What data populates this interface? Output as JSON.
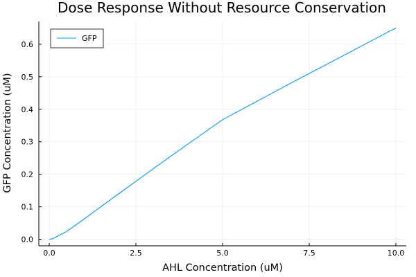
{
  "chart_data": {
    "type": "line",
    "title": "Dose Response Without Resource Conservation",
    "xlabel": "AHL Concentration (uM)",
    "ylabel": "GFP Concentration (uM)",
    "xlim": [
      -0.3,
      10.3
    ],
    "ylim": [
      -0.02,
      0.67
    ],
    "xticks": [
      0.0,
      2.5,
      5.0,
      7.5,
      10.0
    ],
    "xtick_labels": [
      "0.0",
      "2.5",
      "5.0",
      "7.5",
      "10.0"
    ],
    "yticks": [
      0.0,
      0.1,
      0.2,
      0.3,
      0.4,
      0.5,
      0.6
    ],
    "ytick_labels": [
      "0.0",
      "0.1",
      "0.2",
      "0.3",
      "0.4",
      "0.5",
      "0.6"
    ],
    "grid": true,
    "legend": "top-left",
    "series": [
      {
        "name": "GFP",
        "color": "#009af9",
        "x": [
          0.0,
          0.1,
          0.5,
          1.0,
          2.0,
          3.0,
          4.0,
          5.0,
          6.0,
          7.0,
          8.0,
          9.0,
          10.0
        ],
        "y": [
          0.0,
          0.002,
          0.024,
          0.062,
          0.14,
          0.217,
          0.293,
          0.368,
          0.425,
          0.482,
          0.538,
          0.594,
          0.65
        ]
      }
    ]
  }
}
